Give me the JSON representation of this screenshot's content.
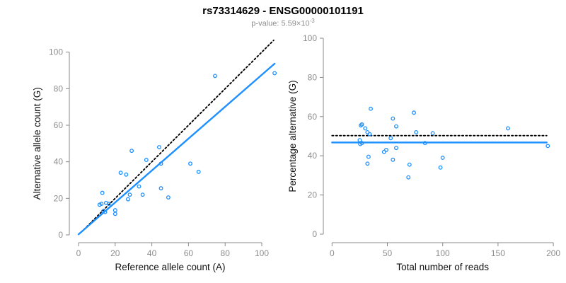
{
  "header": {
    "title": "rs73314629 - ENSG00000101191",
    "pvalue": {
      "text": "p-value: 5.59×10",
      "exponent": "-3"
    }
  },
  "colors": {
    "point_blue": "#1E90FF",
    "fit_line_blue": "#1E90FF",
    "dashed_line_black": "#000000",
    "axis_gray": "#888888",
    "tick_label_gray": "#8C8C8C"
  },
  "chart_data": [
    {
      "type": "scatter",
      "title": "",
      "xlabel": "Reference allele count (A)",
      "ylabel": "Alternative allele count (G)",
      "xticks": [
        0,
        20,
        40,
        60,
        80,
        100
      ],
      "yticks": [
        0,
        20,
        40,
        60,
        80,
        100
      ],
      "xlim": [
        0,
        107
      ],
      "ylim": [
        0,
        106.5
      ],
      "grid": false,
      "legend": "none",
      "point_color": "#1E90FF",
      "points": [
        [
          11.5,
          16.5
        ],
        [
          12.5,
          17
        ],
        [
          15,
          17.5
        ],
        [
          16.5,
          17
        ],
        [
          13,
          23
        ],
        [
          13.5,
          13
        ],
        [
          14.5,
          12.5
        ],
        [
          20,
          13.5
        ],
        [
          20,
          11.5
        ],
        [
          23,
          34
        ],
        [
          26,
          33
        ],
        [
          27,
          19.5
        ],
        [
          28,
          22
        ],
        [
          29,
          46
        ],
        [
          33,
          26.5
        ],
        [
          35,
          22
        ],
        [
          37,
          41
        ],
        [
          44,
          48
        ],
        [
          45,
          39
        ],
        [
          45,
          25.5
        ],
        [
          49,
          20.5
        ],
        [
          61,
          39
        ],
        [
          65.5,
          34.5
        ],
        [
          74.5,
          87
        ],
        [
          107,
          88.5
        ]
      ],
      "lines": [
        {
          "name": "identity-line",
          "style": "dashed",
          "color": "#000000",
          "x": [
            1.5,
            106.5
          ],
          "y": [
            1.5,
            106.5
          ]
        },
        {
          "name": "regression-line",
          "style": "solid",
          "color": "#1E90FF",
          "x": [
            0,
            107
          ],
          "y": [
            0.3,
            93.7
          ]
        }
      ]
    },
    {
      "type": "scatter",
      "title": "",
      "xlabel": "Total number of reads",
      "ylabel": "Percentage alternative (G)",
      "xticks": [
        0,
        50,
        100,
        150,
        200
      ],
      "yticks": [
        0,
        20,
        40,
        60,
        80,
        100
      ],
      "xlim": [
        0,
        200
      ],
      "ylim": [
        0,
        100
      ],
      "grid": false,
      "legend": "none",
      "point_color": "#1E90FF",
      "points": [
        [
          35,
          64
        ],
        [
          74,
          62
        ],
        [
          55,
          59
        ],
        [
          27,
          56
        ],
        [
          26,
          55.5
        ],
        [
          58,
          55
        ],
        [
          30,
          54
        ],
        [
          32,
          52
        ],
        [
          34,
          51
        ],
        [
          76,
          52
        ],
        [
          91,
          51.5
        ],
        [
          159,
          54
        ],
        [
          53,
          49
        ],
        [
          25,
          48
        ],
        [
          27,
          46.5
        ],
        [
          25.5,
          46
        ],
        [
          84,
          46.5
        ],
        [
          195,
          45
        ],
        [
          47,
          42
        ],
        [
          49,
          43
        ],
        [
          58,
          44
        ],
        [
          33,
          39.5
        ],
        [
          55,
          38
        ],
        [
          32,
          36
        ],
        [
          70,
          35.5
        ],
        [
          100,
          39
        ],
        [
          98,
          34
        ],
        [
          69,
          29
        ]
      ],
      "lines": [
        {
          "name": "expected-percentage-line",
          "style": "dashed",
          "color": "#000000",
          "x": [
            0,
            194
          ],
          "y": [
            50.3,
            50.3
          ]
        },
        {
          "name": "regression-line",
          "style": "solid",
          "color": "#1E90FF",
          "x": [
            0,
            194
          ],
          "y": [
            46.8,
            46.8
          ]
        }
      ]
    }
  ]
}
